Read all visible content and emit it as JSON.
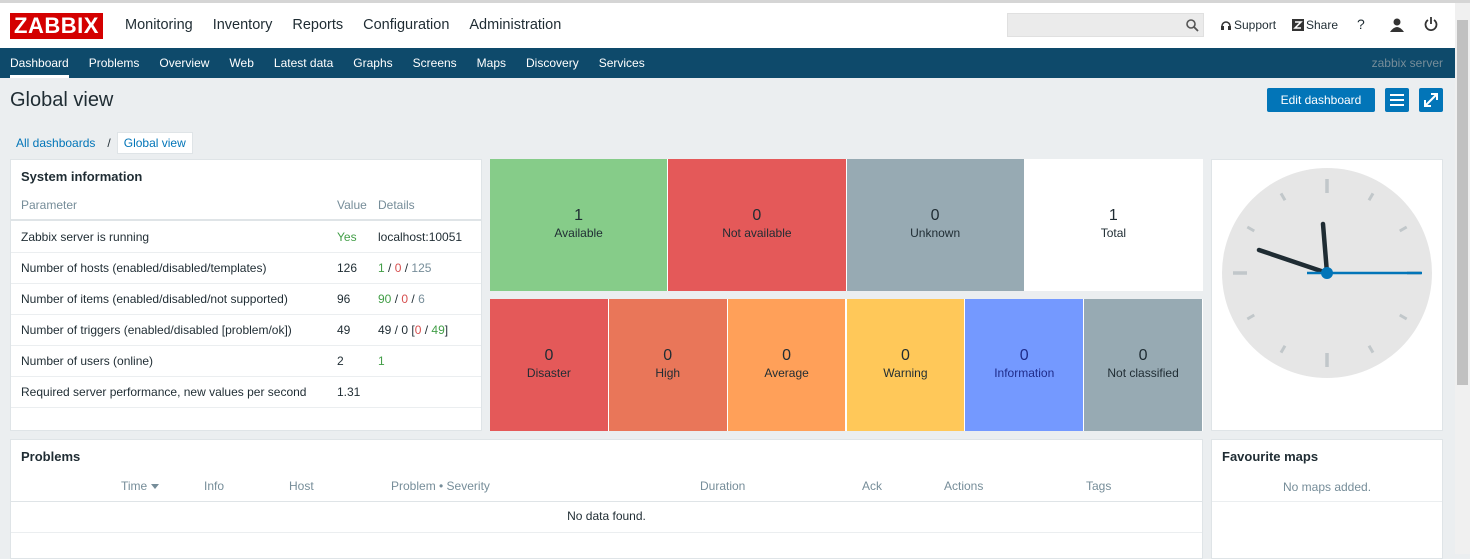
{
  "header": {
    "logo": "ZABBIX",
    "menu": [
      "Monitoring",
      "Inventory",
      "Reports",
      "Configuration",
      "Administration"
    ],
    "support": "Support",
    "share": "Share",
    "help": "?"
  },
  "subnav": {
    "items": [
      "Dashboard",
      "Problems",
      "Overview",
      "Web",
      "Latest data",
      "Graphs",
      "Screens",
      "Maps",
      "Discovery",
      "Services"
    ],
    "server": "zabbix server"
  },
  "page": {
    "title": "Global view",
    "edit_button": "Edit dashboard"
  },
  "breadcrumbs": [
    "All dashboards",
    "/",
    "Global view"
  ],
  "system_info": {
    "title": "System information",
    "columns": [
      "Parameter",
      "Value",
      "Details"
    ],
    "rows": [
      {
        "parameter": "Zabbix server is running",
        "value": "Yes",
        "value_color": "#429e47",
        "details": [
          {
            "text": "localhost:10051"
          }
        ]
      },
      {
        "parameter": "Number of hosts (enabled/disabled/templates)",
        "value": 126,
        "details": [
          {
            "text": "1",
            "color": "#429e47"
          },
          {
            "text": " / "
          },
          {
            "text": "0",
            "color": "#d64e4e"
          },
          {
            "text": " / "
          },
          {
            "text": "125",
            "color": "#768d99"
          }
        ]
      },
      {
        "parameter": "Number of items (enabled/disabled/not supported)",
        "value": 96,
        "details": [
          {
            "text": "90",
            "color": "#429e47"
          },
          {
            "text": " / "
          },
          {
            "text": "0",
            "color": "#d64e4e"
          },
          {
            "text": " / "
          },
          {
            "text": "6",
            "color": "#768d99"
          }
        ]
      },
      {
        "parameter": "Number of triggers (enabled/disabled [problem/ok])",
        "value": 49,
        "details": [
          {
            "text": "49 / 0 ["
          },
          {
            "text": "0",
            "color": "#d64e4e"
          },
          {
            "text": " / "
          },
          {
            "text": "49",
            "color": "#429e47"
          },
          {
            "text": "]"
          }
        ]
      },
      {
        "parameter": "Number of users (online)",
        "value": 2,
        "details": [
          {
            "text": "1",
            "color": "#429e47"
          }
        ]
      },
      {
        "parameter": "Required server performance, new values per second",
        "value": 1.31,
        "details": []
      }
    ]
  },
  "host_availability": [
    {
      "count": 1,
      "label": "Available",
      "color": "#86cc89"
    },
    {
      "count": 0,
      "label": "Not available",
      "color": "#e45959"
    },
    {
      "count": 0,
      "label": "Unknown",
      "color": "#97aab3"
    },
    {
      "count": 1,
      "label": "Total",
      "color": "#ffffff"
    }
  ],
  "problems_by_severity": [
    {
      "count": 0,
      "label": "Disaster",
      "color": "#e45959"
    },
    {
      "count": 0,
      "label": "High",
      "color": "#e97659"
    },
    {
      "count": 0,
      "label": "Average",
      "color": "#ffa059"
    },
    {
      "count": 0,
      "label": "Warning",
      "color": "#ffc859"
    },
    {
      "count": 0,
      "label": "Information",
      "color": "#7499ff",
      "text_color": "#1f2c8a"
    },
    {
      "count": 0,
      "label": "Not classified",
      "color": "#97aab3"
    }
  ],
  "problems": {
    "title": "Problems",
    "columns": [
      "Time",
      "Info",
      "Host",
      "Problem • Severity",
      "Duration",
      "Ack",
      "Actions",
      "Tags"
    ],
    "empty": "No data found."
  },
  "favourite_maps": {
    "title": "Favourite maps",
    "empty": "No maps added."
  }
}
